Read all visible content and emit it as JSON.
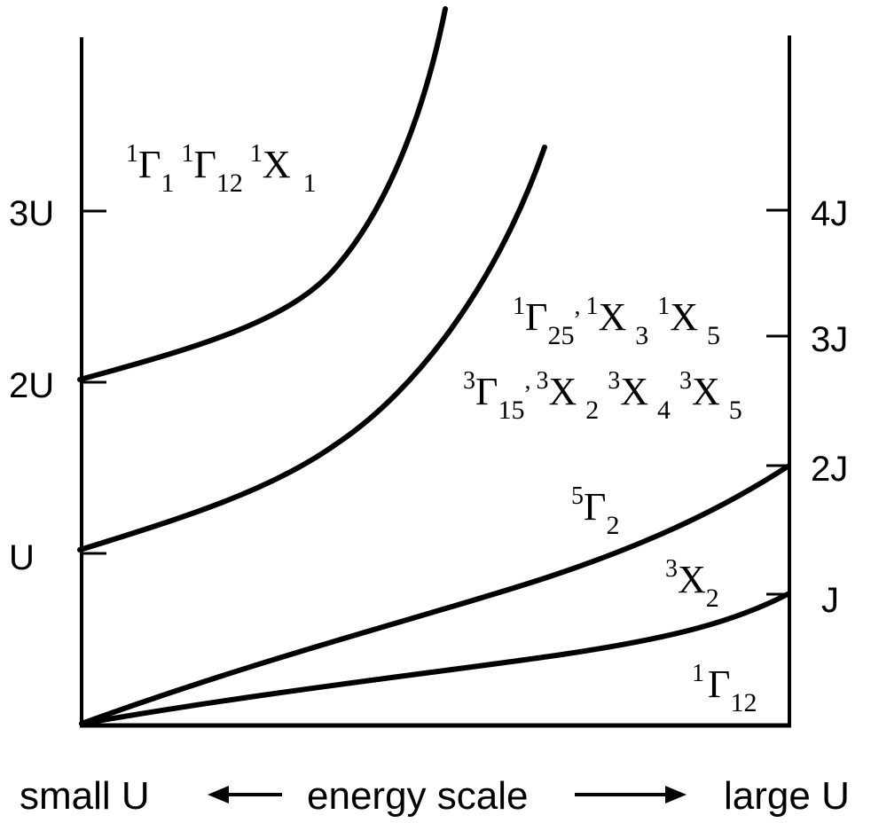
{
  "left_axis": {
    "ticks": [
      "U",
      "2U",
      "3U"
    ]
  },
  "right_axis": {
    "ticks": [
      "J",
      "2J",
      "3J",
      "4J"
    ]
  },
  "states": {
    "top": {
      "a_sup": "1",
      "a_base": "Γ",
      "a_sub": "1",
      "b_sup": "1",
      "b_base": "Γ",
      "b_sub": "12",
      "c_sup": "1",
      "c_base": "X",
      "c_sub": "1"
    },
    "mid1": {
      "a_sup": "1",
      "a_base": "Γ",
      "a_sub": "25",
      "sep": ",",
      "b_sup": "1",
      "b_base": "X",
      "b_sub": "3",
      "c_sup": "1",
      "c_base": "X",
      "c_sub": "5"
    },
    "mid2": {
      "a_sup": "3",
      "a_base": "Γ",
      "a_sub": "15",
      "sep": ",",
      "b_sup": "3",
      "b_base": "X",
      "b_sub": "2",
      "c_sup": "3",
      "c_base": "X",
      "c_sub": "4",
      "d_sup": "3",
      "d_base": "X",
      "d_sub": "5"
    },
    "g2": {
      "sup": "5",
      "base": "Γ",
      "sub": "2"
    },
    "x2": {
      "sup": "3",
      "base": "X",
      "sub": "2"
    },
    "g12": {
      "sup": "1",
      "base": "Γ",
      "sub": "12"
    }
  },
  "bottom": {
    "left": "small U",
    "center": "energy scale",
    "right": "large U"
  }
}
